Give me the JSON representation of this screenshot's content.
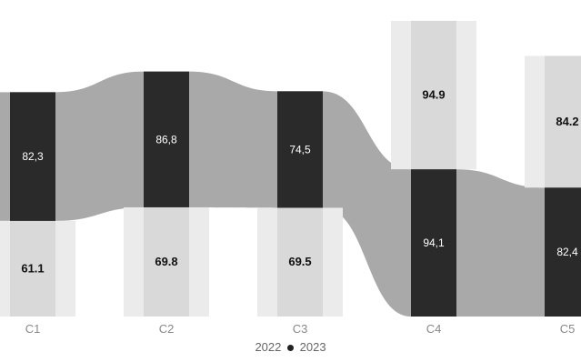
{
  "chart_data": {
    "type": "bar",
    "layout": "stacked-ribbon",
    "categories": [
      "C1",
      "C2",
      "C3",
      "C4",
      "C5"
    ],
    "series": [
      {
        "name": "2023",
        "values": [
          82.3,
          86.8,
          74.5,
          94.1,
          82.4
        ],
        "labels": [
          "82,3",
          "86,8",
          "74,5",
          "94,1",
          "82,4"
        ],
        "color": "#2a2a2a"
      },
      {
        "name": "2022",
        "values": [
          61.1,
          69.8,
          69.5,
          94.9,
          84.2
        ],
        "labels": [
          "61.1",
          "69.8",
          "69.5",
          "94.9",
          "84.2"
        ],
        "color": "#d6d6d6"
      }
    ],
    "legend": {
      "items": [
        "2022",
        "2023"
      ],
      "position": "bottom"
    },
    "colors": {
      "ribbon": "#8c8c8c",
      "dark_bar": "#2a2a2a",
      "light_bar": "#d9d9d9"
    },
    "grid": false,
    "ylim": [
      0,
      190
    ]
  }
}
